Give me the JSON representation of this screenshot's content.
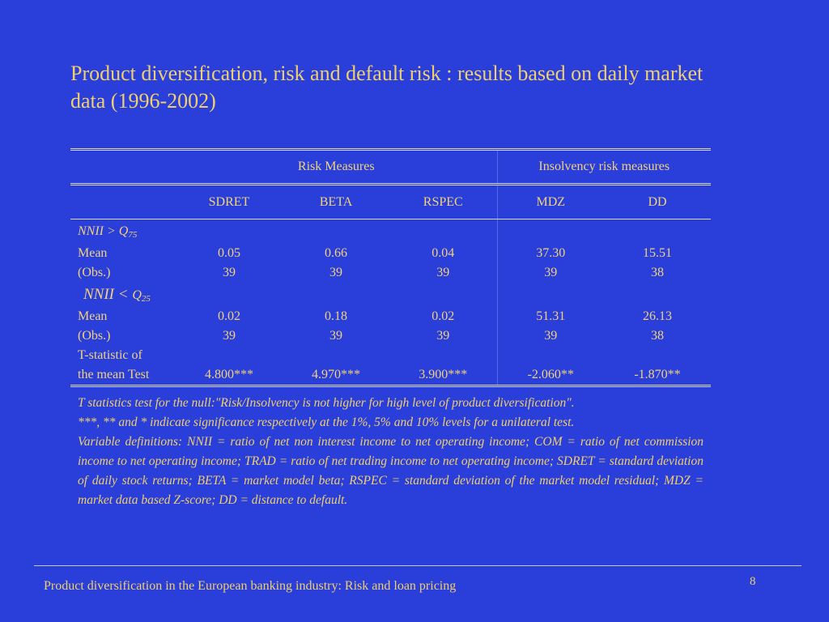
{
  "title": "Product diversification, risk and default risk : results based on daily market data (1996-2002)",
  "table": {
    "group_headers": {
      "risk": "Risk Measures",
      "insolvency": "Insolvency risk measures"
    },
    "columns": [
      "SDRET",
      "BETA",
      "RSPEC",
      "MDZ",
      "DD"
    ],
    "conditions": [
      {
        "var": "NNII",
        "op": ">",
        "q": "Q",
        "sub": "75"
      },
      {
        "var": "NNII",
        "op": "<",
        "q": "Q",
        "sub": "25"
      }
    ],
    "rows": [
      {
        "label": "Mean",
        "values": [
          "0.05",
          "0.66",
          "0.04",
          "37.30",
          "15.51"
        ]
      },
      {
        "label": "(Obs.)",
        "values": [
          "39",
          "39",
          "39",
          "39",
          "38"
        ]
      },
      {
        "label": "Mean",
        "values": [
          "0.02",
          "0.18",
          "0.02",
          "51.31",
          "26.13"
        ]
      },
      {
        "label": "(Obs.)",
        "values": [
          "39",
          "39",
          "39",
          "39",
          "38"
        ]
      },
      {
        "label_line1": "T-statistic of",
        "label_line2": "the mean Test",
        "values": [
          "4.800***",
          "4.970***",
          "3.900***",
          "-2.060**",
          "-1.870**"
        ]
      }
    ]
  },
  "notes": {
    "line1": "T statistics test for the null:\"Risk/Insolvency is not higher for high level of product diversification\".",
    "line2": "***, ** and * indicate significance respectively at the 1%, 5% and 10% levels for a unilateral test.",
    "line3": "Variable definitions: NNII = ratio of net non interest income to net operating income; COM = ratio of net commission income to net operating income; TRAD = ratio of net trading income to net operating income; SDRET = standard deviation of daily stock returns; BETA = market model beta; RSPEC = standard deviation of the market model residual;  MDZ  = market data based Z-score; DD = distance to default."
  },
  "footer": {
    "text": "Product diversification in the European banking industry: Risk and loan pricing",
    "page": "8"
  },
  "colors": {
    "background": "#2a3fd9",
    "text": "#f0cf6e",
    "rule": "#d7d7d7"
  }
}
